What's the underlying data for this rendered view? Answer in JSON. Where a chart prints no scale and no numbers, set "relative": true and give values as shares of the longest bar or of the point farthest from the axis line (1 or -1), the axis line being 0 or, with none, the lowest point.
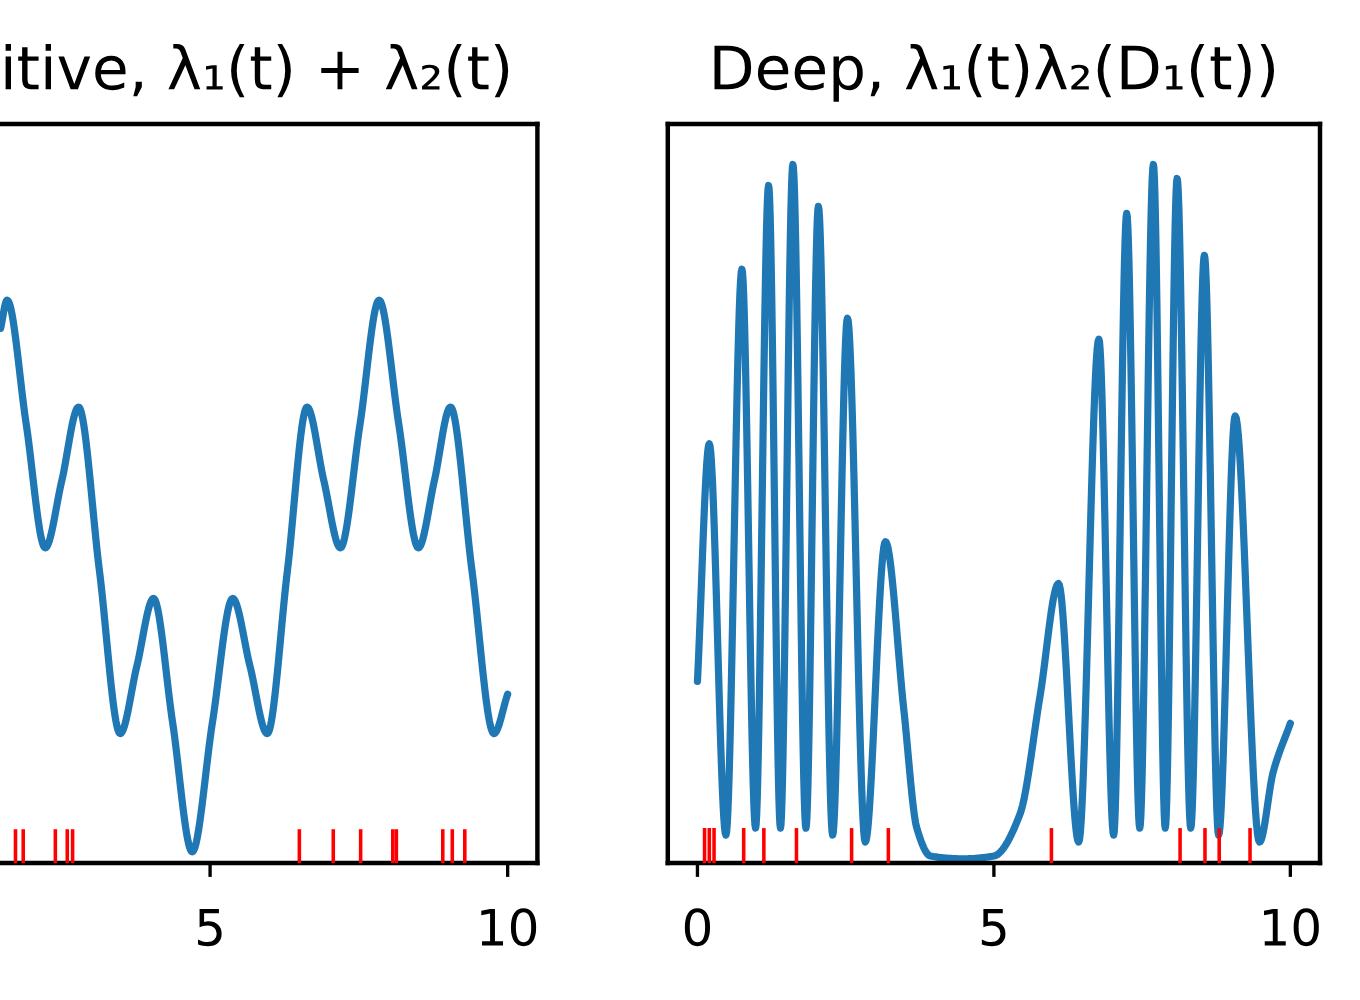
{
  "chart_data": [
    {
      "type": "line",
      "title": "itive, λ₁(t) + λ₂(t)",
      "relative": true,
      "xlim": [
        1.47,
        10.5
      ],
      "xticks": [
        5,
        10
      ],
      "tick_labels": "x",
      "series": [
        {
          "color": "#1f77b4",
          "x": [
            1.48,
            1.59,
            1.91,
            2.23,
            2.51,
            2.79,
            3.14,
            3.49,
            3.77,
            4.05,
            4.37,
            4.7,
            5.04,
            5.38,
            5.67,
            5.96,
            6.3,
            6.63,
            6.91,
            7.19,
            7.52,
            7.84,
            8.17,
            8.5,
            8.77,
            9.04,
            9.4,
            9.77,
            10.0
          ],
          "values": [
            0.95,
            1.0,
            0.78,
            0.56,
            0.68,
            0.81,
            0.52,
            0.23,
            0.35,
            0.47,
            0.25,
            0.02,
            0.25,
            0.47,
            0.35,
            0.23,
            0.52,
            0.81,
            0.68,
            0.56,
            0.78,
            1.0,
            0.78,
            0.56,
            0.68,
            0.81,
            0.52,
            0.23,
            0.3
          ]
        },
        {
          "type": "bar",
          "color": "#ff0000",
          "x": [
            1.73,
            1.86,
            2.4,
            2.6,
            2.69,
            6.5,
            7.07,
            7.53,
            8.07,
            8.13,
            8.91,
            9.07,
            9.28
          ],
          "values": [
            0.06,
            0.06,
            0.06,
            0.06,
            0.06,
            0.06,
            0.06,
            0.06,
            0.06,
            0.06,
            0.06,
            0.06,
            0.06
          ]
        }
      ]
    },
    {
      "type": "line",
      "title": "Deep, λ₁(t)λ₂(D₁(t))",
      "relative": true,
      "xlim": [
        -0.5,
        10.5
      ],
      "xticks": [
        0,
        5,
        10
      ],
      "tick_labels": "x",
      "series": [
        {
          "color": "#1f77b4",
          "x": [
            0.0,
            0.2,
            0.48,
            0.75,
            0.98,
            1.2,
            1.4,
            1.61,
            1.83,
            2.04,
            2.28,
            2.53,
            2.83,
            3.17,
            3.48,
            3.7,
            3.93,
            4.49,
            5.0,
            5.44,
            5.78,
            6.09,
            6.43,
            6.77,
            7.02,
            7.24,
            7.46,
            7.69,
            7.89,
            8.09,
            8.32,
            8.55,
            8.79,
            9.07,
            9.48,
            9.71,
            10.0
          ],
          "values": [
            0.26,
            0.6,
            0.04,
            0.85,
            0.05,
            0.97,
            0.05,
            1.0,
            0.05,
            0.94,
            0.04,
            0.78,
            0.03,
            0.46,
            0.22,
            0.05,
            0.01,
            0.006,
            0.01,
            0.07,
            0.24,
            0.4,
            0.03,
            0.75,
            0.04,
            0.93,
            0.05,
            1.0,
            0.05,
            0.98,
            0.05,
            0.87,
            0.04,
            0.64,
            0.03,
            0.13,
            0.2
          ]
        },
        {
          "type": "bar",
          "color": "#ff0000",
          "x": [
            0.12,
            0.2,
            0.28,
            0.78,
            1.12,
            1.67,
            2.6,
            3.22,
            5.97,
            8.14,
            8.56,
            8.8,
            9.32
          ],
          "values": [
            0.05,
            0.05,
            0.05,
            0.05,
            0.05,
            0.05,
            0.05,
            0.05,
            0.05,
            0.05,
            0.05,
            0.05,
            0.05
          ]
        }
      ]
    }
  ]
}
